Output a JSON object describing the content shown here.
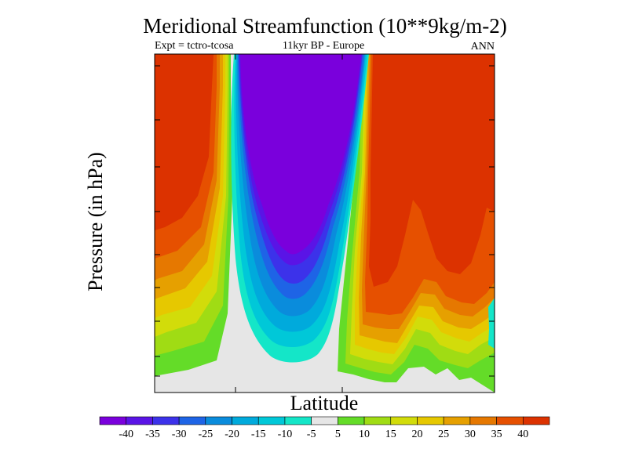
{
  "chart_data": {
    "type": "contour",
    "title": "Meridional Streamfunction (10**9kg/m-2)",
    "subtitle_left": "Expt = tctro-tcosa",
    "subtitle_center": "11kyr BP - Europe",
    "subtitle_right": "ANN",
    "xlabel": "Latitude",
    "ylabel": "Pressure (in hPa)",
    "colorbar": {
      "tick_labels": [
        "-40",
        "-35",
        "-30",
        "-25",
        "-20",
        "-15",
        "-10",
        "-5",
        "5",
        "10",
        "15",
        "20",
        "25",
        "30",
        "35",
        "40"
      ],
      "bins": [
        {
          "range": "< -40",
          "color": "#7a00dc"
        },
        {
          "range": "-40 to -35",
          "color": "#5a14e6"
        },
        {
          "range": "-35 to -30",
          "color": "#3c32ea"
        },
        {
          "range": "-30 to -25",
          "color": "#1e64e6"
        },
        {
          "range": "-25 to -20",
          "color": "#0a8cdc"
        },
        {
          "range": "-20 to -15",
          "color": "#00aadc"
        },
        {
          "range": "-15 to -10",
          "color": "#00c8d8"
        },
        {
          "range": "-10 to -5",
          "color": "#14e6c8"
        },
        {
          "range": "-5 to 5",
          "color": "#e6e6e6"
        },
        {
          "range": "5 to 10",
          "color": "#64dc28"
        },
        {
          "range": "10 to 15",
          "color": "#a0dc14"
        },
        {
          "range": "15 to 20",
          "color": "#d2dc0a"
        },
        {
          "range": "20 to 25",
          "color": "#e6c800"
        },
        {
          "range": "25 to 30",
          "color": "#e6a000"
        },
        {
          "range": "30 to 35",
          "color": "#e67800"
        },
        {
          "range": "35 to 40",
          "color": "#e65000"
        },
        {
          "range": "> 40",
          "color": "#dc3200"
        }
      ]
    },
    "features": [
      {
        "name": "negative-cell",
        "description": "strong negative streamfunction cell in center",
        "min_value": -45
      },
      {
        "name": "positive-cell-left",
        "description": "positive cell at left edge",
        "max_value": 45
      },
      {
        "name": "positive-cell-right",
        "description": "large positive cell at right",
        "max_value": 45
      }
    ]
  }
}
